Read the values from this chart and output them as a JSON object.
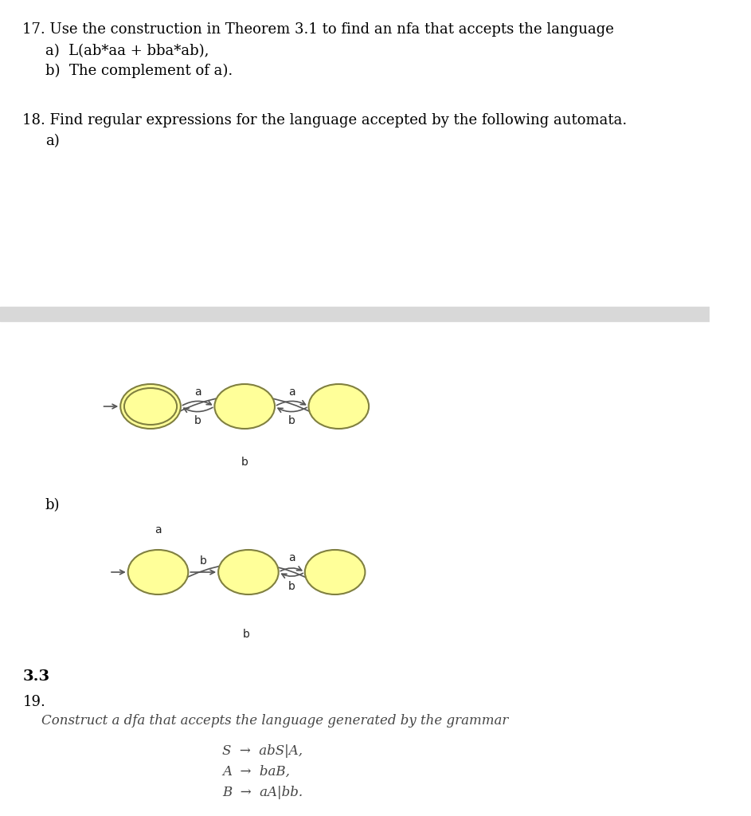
{
  "bg_color": "#ffffff",
  "gray_bar_color": "#d8d8d8",
  "text_color": "#000000",
  "title_17": "17. Use the construction in Theorem 3.1 to find an nfa that accepts the language",
  "item_17a": "a)  L(ab*aa + bba*ab),",
  "item_17b": "b)  The complement of a).",
  "title_18": "18. Find regular expressions for the language accepted by the following automata.",
  "item_18a": "a)",
  "item_18b": "b)",
  "section_33": "3.3",
  "item_19": "19.",
  "text_19": "Construct a dfa that accepts the language generated by the grammar",
  "grammar_S": "S  →  abS|A,",
  "grammar_A": "A  →  baB,",
  "grammar_B": "B  →  aA|bb.",
  "node_fill": "#ffff99",
  "node_edge": "#808040",
  "arrow_color": "#555555"
}
